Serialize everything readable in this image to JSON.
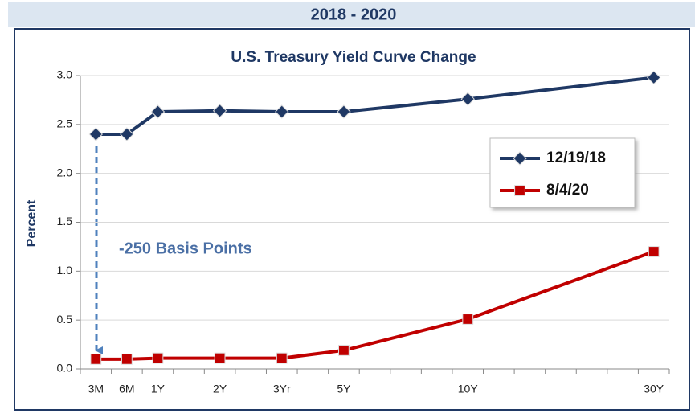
{
  "header": "2018 - 2020",
  "chart_data": {
    "type": "line",
    "title": "U.S. Treasury Yield Curve Change",
    "ylabel": "Percent",
    "categories": [
      "3M",
      "6M",
      "1Y",
      "2Y",
      "3Yr",
      "5Y",
      "10Y",
      "30Y"
    ],
    "series": [
      {
        "name": "12/19/18",
        "color": "#1f3864",
        "marker": "diamond",
        "values": [
          2.4,
          2.4,
          2.63,
          2.64,
          2.63,
          2.63,
          2.76,
          2.98
        ]
      },
      {
        "name": "8/4/20",
        "color": "#c00000",
        "marker": "square",
        "values": [
          0.1,
          0.1,
          0.11,
          0.11,
          0.11,
          0.19,
          0.51,
          1.2
        ]
      }
    ],
    "ylim": [
      0,
      3
    ],
    "yticks": [
      {
        "value": 0,
        "label": "0.0"
      },
      {
        "value": 0.5,
        "label": "0.5"
      },
      {
        "value": 1,
        "label": "1.0"
      },
      {
        "value": 1.5,
        "label": "1.5"
      },
      {
        "value": 2,
        "label": "2.0"
      },
      {
        "value": 2.5,
        "label": "2.5"
      },
      {
        "value": 3,
        "label": "3.0"
      }
    ],
    "grid": true,
    "annotation": "-250 Basis Points"
  }
}
